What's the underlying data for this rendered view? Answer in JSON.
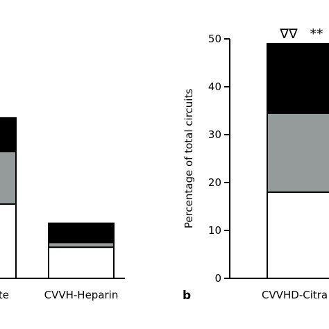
{
  "chart_data": [
    {
      "type": "bar",
      "stacked": true,
      "panel": "a",
      "panel_label": "",
      "categories": [
        "CVVH-Citrate",
        "CVVH-Heparin"
      ],
      "category_labels_visible": [
        "trate",
        "CVVH-Heparin"
      ],
      "series": [
        {
          "color": "#ffffff",
          "values": [
            15.5,
            6.5
          ]
        },
        {
          "color": "#959a9a",
          "values": [
            11,
            1
          ]
        },
        {
          "color": "#000000",
          "values": [
            7,
            4
          ]
        }
      ],
      "ylim": [
        0,
        50
      ],
      "ylabel": "",
      "title": ""
    },
    {
      "type": "bar",
      "stacked": true,
      "panel": "b",
      "panel_label": "b",
      "categories": [
        "CVVHD-Citrate"
      ],
      "category_labels_visible": [
        "CVVHD-Citra"
      ],
      "series": [
        {
          "color": "#ffffff",
          "values": [
            18
          ]
        },
        {
          "color": "#959a9a",
          "values": [
            16.5
          ]
        },
        {
          "color": "#000000",
          "values": [
            14.5
          ]
        }
      ],
      "significance_markers": [
        "∇∇",
        "**"
      ],
      "ylim": [
        0,
        50
      ],
      "yticks": [
        0,
        10,
        20,
        30,
        40,
        50
      ],
      "ylabel": "Percentage of total circuits",
      "title": ""
    }
  ]
}
